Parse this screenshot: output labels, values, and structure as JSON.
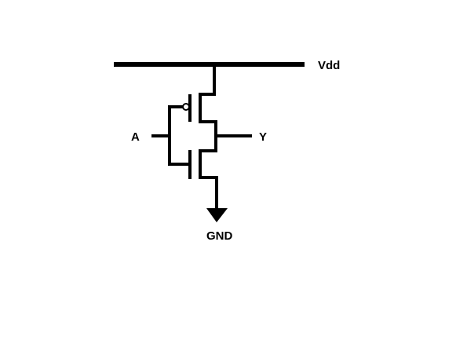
{
  "diagram": {
    "labels": {
      "vdd": "Vdd",
      "input": "A",
      "output": "Y",
      "ground": "GND"
    },
    "colors": {
      "line": "#000000",
      "background": "#ffffff"
    }
  }
}
